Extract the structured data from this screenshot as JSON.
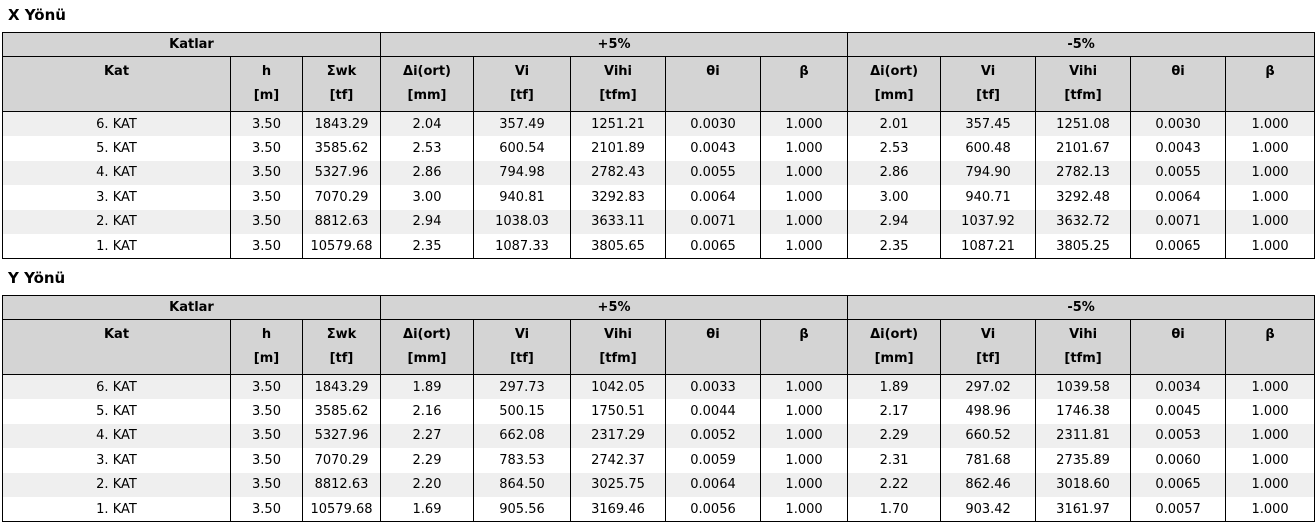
{
  "colors": {
    "header_bg": "#d4d4d4",
    "row_stripe": "#efefef",
    "row_plain": "#ffffff",
    "border": "#000000",
    "text": "#000000"
  },
  "group_header": {
    "katlar": "Katlar",
    "plus": "+5%",
    "minus": "-5%"
  },
  "columns": [
    {
      "name": "Kat",
      "unit": ""
    },
    {
      "name": "h",
      "unit": "[m]"
    },
    {
      "name": "Σwk",
      "unit": "[tf]"
    },
    {
      "name": "Δi(ort)",
      "unit": "[mm]"
    },
    {
      "name": "Vi",
      "unit": "[tf]"
    },
    {
      "name": "Vihi",
      "unit": "[tfm]"
    },
    {
      "name": "θi",
      "unit": ""
    },
    {
      "name": "β",
      "unit": ""
    },
    {
      "name": "Δi(ort)",
      "unit": "[mm]"
    },
    {
      "name": "Vi",
      "unit": "[tf]"
    },
    {
      "name": "Vihi",
      "unit": "[tfm]"
    },
    {
      "name": "θi",
      "unit": ""
    },
    {
      "name": "β",
      "unit": ""
    }
  ],
  "tables": [
    {
      "title": "X Yönü",
      "rows": [
        [
          "6. KAT",
          "3.50",
          "1843.29",
          "2.04",
          "357.49",
          "1251.21",
          "0.0030",
          "1.000",
          "2.01",
          "357.45",
          "1251.08",
          "0.0030",
          "1.000"
        ],
        [
          "5. KAT",
          "3.50",
          "3585.62",
          "2.53",
          "600.54",
          "2101.89",
          "0.0043",
          "1.000",
          "2.53",
          "600.48",
          "2101.67",
          "0.0043",
          "1.000"
        ],
        [
          "4. KAT",
          "3.50",
          "5327.96",
          "2.86",
          "794.98",
          "2782.43",
          "0.0055",
          "1.000",
          "2.86",
          "794.90",
          "2782.13",
          "0.0055",
          "1.000"
        ],
        [
          "3. KAT",
          "3.50",
          "7070.29",
          "3.00",
          "940.81",
          "3292.83",
          "0.0064",
          "1.000",
          "3.00",
          "940.71",
          "3292.48",
          "0.0064",
          "1.000"
        ],
        [
          "2. KAT",
          "3.50",
          "8812.63",
          "2.94",
          "1038.03",
          "3633.11",
          "0.0071",
          "1.000",
          "2.94",
          "1037.92",
          "3632.72",
          "0.0071",
          "1.000"
        ],
        [
          "1. KAT",
          "3.50",
          "10579.68",
          "2.35",
          "1087.33",
          "3805.65",
          "0.0065",
          "1.000",
          "2.35",
          "1087.21",
          "3805.25",
          "0.0065",
          "1.000"
        ]
      ]
    },
    {
      "title": "Y Yönü",
      "rows": [
        [
          "6. KAT",
          "3.50",
          "1843.29",
          "1.89",
          "297.73",
          "1042.05",
          "0.0033",
          "1.000",
          "1.89",
          "297.02",
          "1039.58",
          "0.0034",
          "1.000"
        ],
        [
          "5. KAT",
          "3.50",
          "3585.62",
          "2.16",
          "500.15",
          "1750.51",
          "0.0044",
          "1.000",
          "2.17",
          "498.96",
          "1746.38",
          "0.0045",
          "1.000"
        ],
        [
          "4. KAT",
          "3.50",
          "5327.96",
          "2.27",
          "662.08",
          "2317.29",
          "0.0052",
          "1.000",
          "2.29",
          "660.52",
          "2311.81",
          "0.0053",
          "1.000"
        ],
        [
          "3. KAT",
          "3.50",
          "7070.29",
          "2.29",
          "783.53",
          "2742.37",
          "0.0059",
          "1.000",
          "2.31",
          "781.68",
          "2735.89",
          "0.0060",
          "1.000"
        ],
        [
          "2. KAT",
          "3.50",
          "8812.63",
          "2.20",
          "864.50",
          "3025.75",
          "0.0064",
          "1.000",
          "2.22",
          "862.46",
          "3018.60",
          "0.0065",
          "1.000"
        ],
        [
          "1. KAT",
          "3.50",
          "10579.68",
          "1.69",
          "905.56",
          "3169.46",
          "0.0056",
          "1.000",
          "1.70",
          "903.42",
          "3161.97",
          "0.0057",
          "1.000"
        ]
      ]
    }
  ]
}
